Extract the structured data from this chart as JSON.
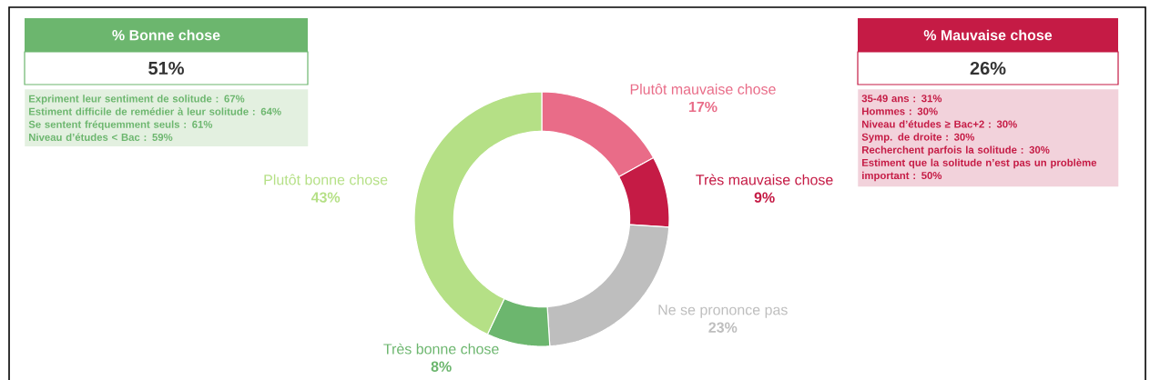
{
  "chart_data": [
    {
      "type": "other",
      "title": "% Bonne chose",
      "subtitle": "51%",
      "annotations": [
        "Expriment leur sentiment de solitude : 67%",
        "Estiment difficile de remédier à leur solitude : 64%",
        "Se sentent fréquemment seuls : 61%",
        "Niveau d’études < Bac : 59%"
      ]
    },
    {
      "type": "donut",
      "categories": [
        "Plutôt mauvaise chose",
        "Très mauvaise chose",
        "Ne se prononce pas",
        "Très bonne chose",
        "Plutôt bonne chose"
      ],
      "values": [
        17,
        9,
        23,
        8,
        43
      ],
      "colors": [
        "#e96c88",
        "#c51b45",
        "#bebebe",
        "#6cb66e",
        "#b5e086"
      ],
      "value_labels": [
        "17%",
        "9%",
        "23%",
        "8%",
        "43%"
      ]
    },
    {
      "type": "other",
      "title": "% Mauvaise chose",
      "subtitle": "26%",
      "annotations": [
        "35-49 ans : 31%",
        "Hommes : 30%",
        "Niveau d’études ≥ Bac+2 : 30%",
        "Symp. de droite : 30%",
        "Recherchent parfois la solitude : 30%",
        "Estiment que la solitude n’est pas un problème important : 50%"
      ]
    }
  ]
}
